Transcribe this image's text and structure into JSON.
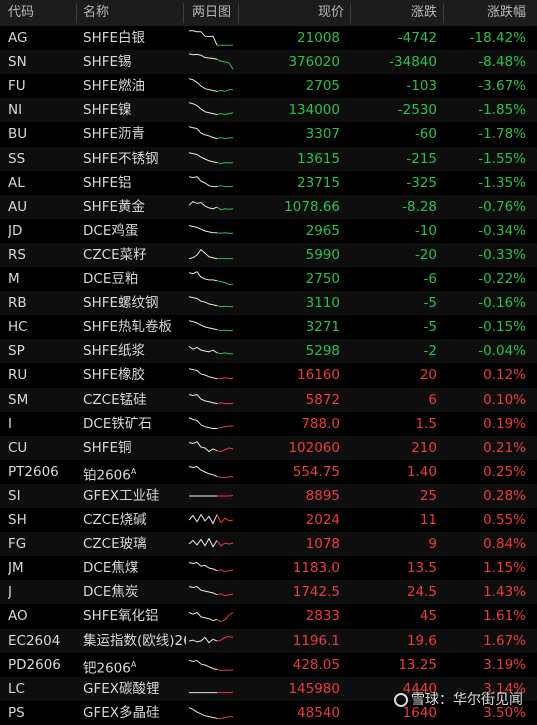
{
  "headers": {
    "code": "代码",
    "name": "名称",
    "chart": "两日图",
    "price": "现价",
    "change": "涨跌",
    "pct": "涨跌幅"
  },
  "rows": [
    {
      "code": "AG",
      "name": "SHFE白银",
      "price": "21008",
      "change": "-4742",
      "pct": "-18.42%",
      "dir": "down",
      "spark": [
        0.9,
        0.9,
        0.85,
        0.85,
        0.6,
        0.58,
        0.6,
        0.1,
        0.1,
        0.1,
        0.1,
        0.1
      ]
    },
    {
      "code": "SN",
      "name": "SHFE锡",
      "price": "376020",
      "change": "-34840",
      "pct": "-8.48%",
      "dir": "down",
      "spark": [
        0.95,
        0.9,
        0.92,
        0.88,
        0.75,
        0.72,
        0.7,
        0.65,
        0.55,
        0.5,
        0.45,
        0.1
      ]
    },
    {
      "code": "FU",
      "name": "SHFE燃油",
      "price": "2705",
      "change": "-103",
      "pct": "-3.67%",
      "dir": "down",
      "spark": [
        0.9,
        0.85,
        0.7,
        0.5,
        0.35,
        0.3,
        0.25,
        0.2,
        0.25,
        0.2,
        0.3,
        0.3
      ]
    },
    {
      "code": "NI",
      "name": "SHFE镍",
      "price": "134000",
      "change": "-2530",
      "pct": "-1.85%",
      "dir": "down",
      "spark": [
        0.9,
        0.85,
        0.75,
        0.55,
        0.4,
        0.35,
        0.3,
        0.25,
        0.3,
        0.25,
        0.3,
        0.35
      ]
    },
    {
      "code": "BU",
      "name": "SHFE沥青",
      "price": "3307",
      "change": "-60",
      "pct": "-1.78%",
      "dir": "down",
      "spark": [
        0.9,
        0.85,
        0.8,
        0.55,
        0.45,
        0.4,
        0.3,
        0.25,
        0.3,
        0.25,
        0.28,
        0.3
      ]
    },
    {
      "code": "SS",
      "name": "SHFE不锈钢",
      "price": "13615",
      "change": "-215",
      "pct": "-1.55%",
      "dir": "down",
      "spark": [
        0.85,
        0.8,
        0.75,
        0.6,
        0.5,
        0.4,
        0.35,
        0.3,
        0.25,
        0.3,
        0.28,
        0.3
      ]
    },
    {
      "code": "AL",
      "name": "SHFE铝",
      "price": "23715",
      "change": "-325",
      "pct": "-1.35%",
      "dir": "down",
      "spark": [
        0.85,
        0.8,
        0.85,
        0.6,
        0.5,
        0.35,
        0.3,
        0.3,
        0.35,
        0.3,
        0.3,
        0.32
      ]
    },
    {
      "code": "AU",
      "name": "SHFE黄金",
      "price": "1078.66",
      "change": "-8.28",
      "pct": "-0.76%",
      "dir": "down",
      "spark": [
        0.6,
        0.8,
        0.7,
        0.75,
        0.55,
        0.45,
        0.4,
        0.5,
        0.35,
        0.4,
        0.38,
        0.4
      ]
    },
    {
      "code": "JD",
      "name": "DCE鸡蛋",
      "price": "2965",
      "change": "-10",
      "pct": "-0.34%",
      "dir": "down",
      "spark": [
        0.8,
        0.75,
        0.7,
        0.6,
        0.5,
        0.45,
        0.4,
        0.4,
        0.38,
        0.4,
        0.38,
        0.38
      ]
    },
    {
      "code": "RS",
      "name": "CZCE菜籽",
      "price": "5990",
      "change": "-20",
      "pct": "-0.33%",
      "dir": "down",
      "spark": [
        0.3,
        0.35,
        0.5,
        0.8,
        0.6,
        0.4,
        0.35,
        0.3,
        0.3,
        0.3,
        0.3,
        0.3
      ]
    },
    {
      "code": "M",
      "name": "DCE豆粕",
      "price": "2750",
      "change": "-6",
      "pct": "-0.22%",
      "dir": "down",
      "spark": [
        0.85,
        0.8,
        0.9,
        0.6,
        0.5,
        0.45,
        0.45,
        0.4,
        0.35,
        0.3,
        0.2,
        0.2
      ]
    },
    {
      "code": "RB",
      "name": "SHFE螺纹钢",
      "price": "3110",
      "change": "-5",
      "pct": "-0.16%",
      "dir": "down",
      "spark": [
        0.85,
        0.8,
        0.75,
        0.6,
        0.55,
        0.45,
        0.4,
        0.35,
        0.3,
        0.32,
        0.3,
        0.3
      ]
    },
    {
      "code": "HC",
      "name": "SHFE热轧卷板",
      "price": "3271",
      "change": "-5",
      "pct": "-0.15%",
      "dir": "down",
      "spark": [
        0.85,
        0.8,
        0.72,
        0.6,
        0.5,
        0.45,
        0.4,
        0.35,
        0.3,
        0.33,
        0.3,
        0.3
      ]
    },
    {
      "code": "SP",
      "name": "SHFE纸浆",
      "price": "5298",
      "change": "-2",
      "pct": "-0.04%",
      "dir": "down",
      "spark": [
        0.75,
        0.6,
        0.7,
        0.55,
        0.5,
        0.45,
        0.55,
        0.4,
        0.35,
        0.4,
        0.35,
        0.35
      ]
    },
    {
      "code": "RU",
      "name": "SHFE橡胶",
      "price": "16160",
      "change": "20",
      "pct": "0.12%",
      "dir": "up",
      "spark": [
        0.85,
        0.8,
        0.75,
        0.55,
        0.5,
        0.4,
        0.35,
        0.3,
        0.3,
        0.35,
        0.3,
        0.33
      ]
    },
    {
      "code": "SM",
      "name": "CZCE锰硅",
      "price": "5872",
      "change": "6",
      "pct": "0.10%",
      "dir": "up",
      "spark": [
        0.8,
        0.75,
        0.8,
        0.55,
        0.45,
        0.4,
        0.35,
        0.3,
        0.35,
        0.3,
        0.3,
        0.32
      ]
    },
    {
      "code": "I",
      "name": "DCE铁矿石",
      "price": "788.0",
      "change": "1.5",
      "pct": "0.19%",
      "dir": "up",
      "spark": [
        0.85,
        0.75,
        0.7,
        0.45,
        0.35,
        0.3,
        0.25,
        0.25,
        0.3,
        0.35,
        0.38,
        0.4
      ]
    },
    {
      "code": "CU",
      "name": "SHFE铜",
      "price": "102060",
      "change": "210",
      "pct": "0.21%",
      "dir": "up",
      "spark": [
        0.8,
        0.75,
        0.85,
        0.55,
        0.5,
        0.3,
        0.45,
        0.35,
        0.3,
        0.4,
        0.5,
        0.45
      ]
    },
    {
      "code": "PT2606",
      "name": "铂2606",
      "sup": "A",
      "price": "554.75",
      "change": "1.40",
      "pct": "0.25%",
      "dir": "up",
      "spark": [
        0.8,
        0.75,
        0.8,
        0.6,
        0.5,
        0.4,
        0.35,
        0.25,
        0.2,
        0.2,
        0.22,
        0.25
      ]
    },
    {
      "code": "SI",
      "name": "GFEX工业硅",
      "price": "8895",
      "change": "25",
      "pct": "0.28%",
      "dir": "up",
      "spark": [
        0.5,
        0.5,
        0.5,
        0.5,
        0.5,
        0.5,
        0.5,
        0.5,
        0.5,
        0.5,
        0.5,
        0.52
      ]
    },
    {
      "code": "SH",
      "name": "CZCE烧碱",
      "price": "2024",
      "change": "11",
      "pct": "0.55%",
      "dir": "up",
      "spark": [
        0.5,
        0.75,
        0.4,
        0.8,
        0.45,
        0.7,
        0.3,
        0.8,
        0.35,
        0.6,
        0.45,
        0.5
      ]
    },
    {
      "code": "FG",
      "name": "CZCE玻璃",
      "price": "1078",
      "change": "9",
      "pct": "0.84%",
      "dir": "up",
      "spark": [
        0.5,
        0.7,
        0.45,
        0.75,
        0.4,
        0.8,
        0.35,
        0.7,
        0.4,
        0.55,
        0.5,
        0.55
      ]
    },
    {
      "code": "JM",
      "name": "DCE焦煤",
      "price": "1183.0",
      "change": "13.5",
      "pct": "1.15%",
      "dir": "up",
      "spark": [
        0.8,
        0.75,
        0.8,
        0.6,
        0.65,
        0.5,
        0.45,
        0.35,
        0.4,
        0.3,
        0.35,
        0.4
      ]
    },
    {
      "code": "J",
      "name": "DCE焦炭",
      "price": "1742.5",
      "change": "24.5",
      "pct": "1.43%",
      "dir": "up",
      "spark": [
        0.8,
        0.75,
        0.8,
        0.6,
        0.55,
        0.5,
        0.45,
        0.35,
        0.4,
        0.3,
        0.35,
        0.38
      ]
    },
    {
      "code": "AO",
      "name": "SHFE氧化铝",
      "price": "2833",
      "change": "45",
      "pct": "1.61%",
      "dir": "up",
      "spark": [
        0.7,
        0.6,
        0.7,
        0.45,
        0.4,
        0.35,
        0.25,
        0.3,
        0.2,
        0.3,
        0.55,
        0.7
      ]
    },
    {
      "code": "EC2604",
      "name": "集运指数(欧线)26",
      "price": "1196.1",
      "change": "19.6",
      "pct": "1.67%",
      "dir": "up",
      "spark": [
        0.5,
        0.55,
        0.45,
        0.5,
        0.7,
        0.4,
        0.6,
        0.5,
        0.55,
        0.7,
        0.75,
        0.7
      ]
    },
    {
      "code": "PD2606",
      "name": "钯2606",
      "sup": "A",
      "price": "428.05",
      "change": "13.25",
      "pct": "3.19%",
      "dir": "up",
      "spark": [
        0.75,
        0.7,
        0.75,
        0.55,
        0.5,
        0.4,
        0.3,
        0.25,
        0.2,
        0.22,
        0.2,
        0.22
      ]
    },
    {
      "code": "LC",
      "name": "GFEX碳酸锂",
      "price": "145980",
      "change": "4440",
      "pct": "3.14%",
      "dir": "up",
      "spark": [
        0.3,
        0.3,
        0.3,
        0.3,
        0.3,
        0.3,
        0.3,
        0.3,
        0.3,
        0.3,
        0.3,
        0.32
      ]
    },
    {
      "code": "PS",
      "name": "GFEX多晶硅",
      "price": "48540",
      "change": "1640",
      "pct": "3.50%",
      "dir": "up",
      "spark": [
        0.8,
        0.7,
        0.55,
        0.45,
        0.35,
        0.3,
        0.25,
        0.2,
        0.2,
        0.25,
        0.3,
        0.3
      ]
    }
  ],
  "watermark": "雪球：华尔街见闻",
  "colors": {
    "up": "#ec3b3b",
    "down": "#27c24c",
    "line": "#e8e8e8"
  }
}
